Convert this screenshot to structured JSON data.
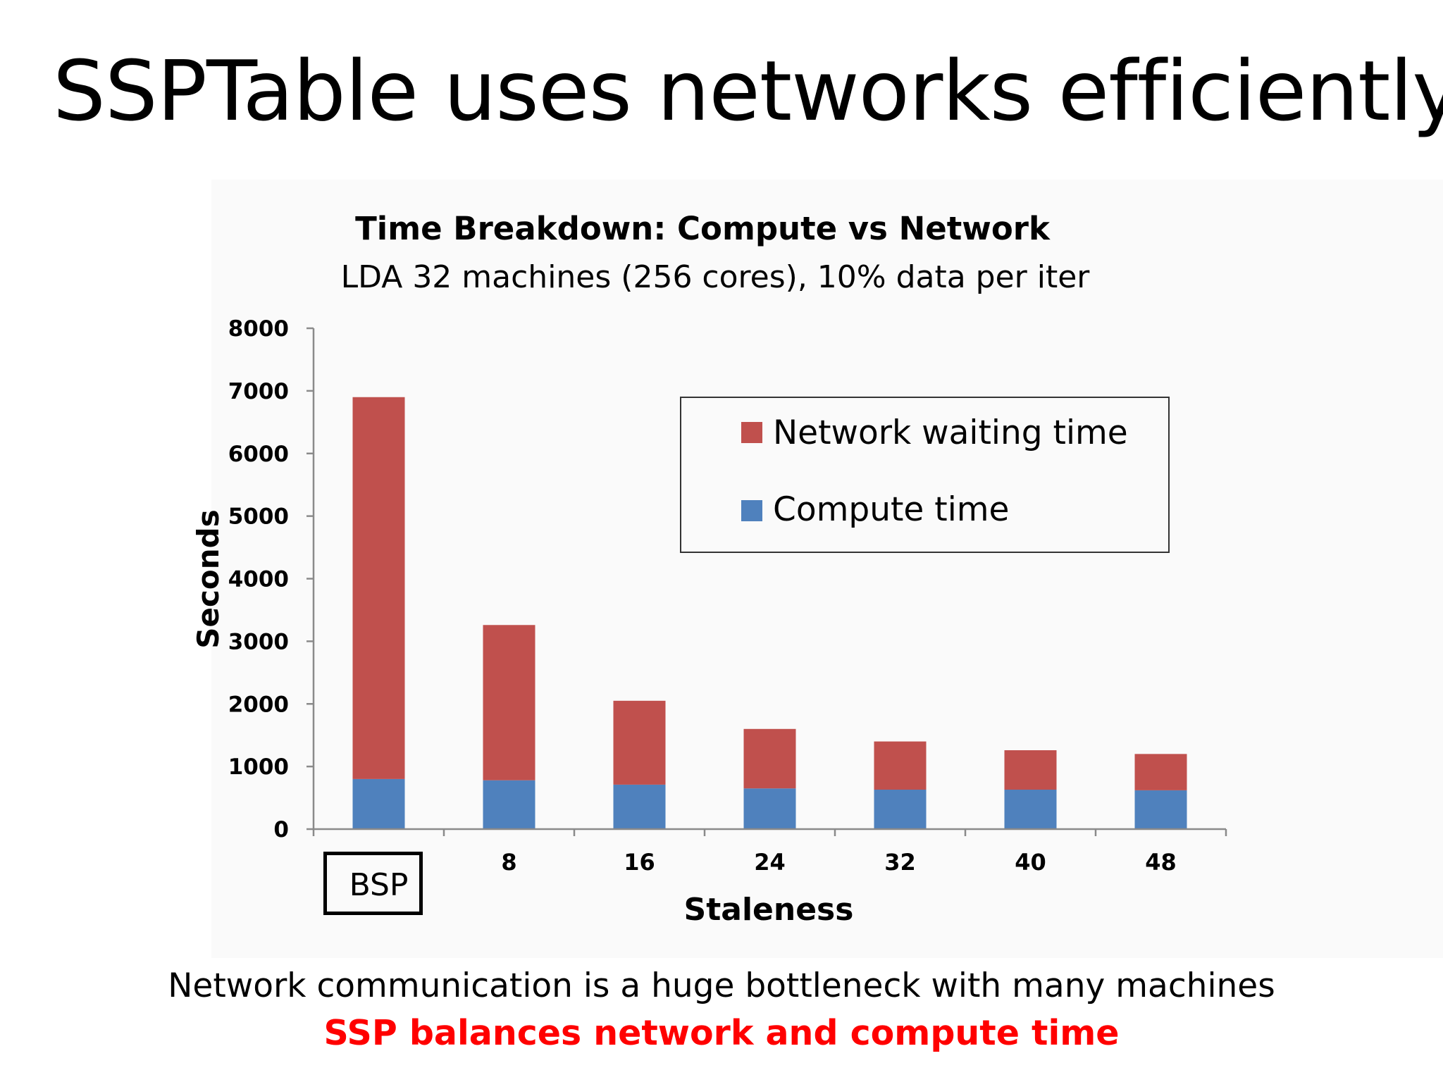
{
  "slide": {
    "title": "SSPTable uses networks efficiently",
    "footer_line1": "Network communication is a huge bottleneck with many machines",
    "footer_line2": "SSP balances network and compute time"
  },
  "colors": {
    "network": "#c0504d",
    "compute": "#4f81bd",
    "emphasis": "#ff0000"
  },
  "chart_data": {
    "type": "bar",
    "stacked": true,
    "title": "Time Breakdown: Compute vs Network",
    "subtitle": "LDA 32 machines (256 cores), 10% data per iter",
    "xlabel": "Staleness",
    "ylabel": "Seconds",
    "categories": [
      "BSP",
      "8",
      "16",
      "24",
      "32",
      "40",
      "48"
    ],
    "highlighted_category": "BSP",
    "ylim": [
      0,
      8000
    ],
    "yticks": [
      0,
      1000,
      2000,
      3000,
      4000,
      5000,
      6000,
      7000,
      8000
    ],
    "grid": false,
    "legend_position": "top-right",
    "legend_order": [
      "Network waiting time",
      "Compute time"
    ],
    "series": [
      {
        "name": "Compute time",
        "values": [
          800,
          780,
          710,
          650,
          630,
          630,
          620
        ]
      },
      {
        "name": "Network waiting time",
        "values": [
          6100,
          2480,
          1340,
          950,
          770,
          630,
          580
        ]
      }
    ]
  }
}
